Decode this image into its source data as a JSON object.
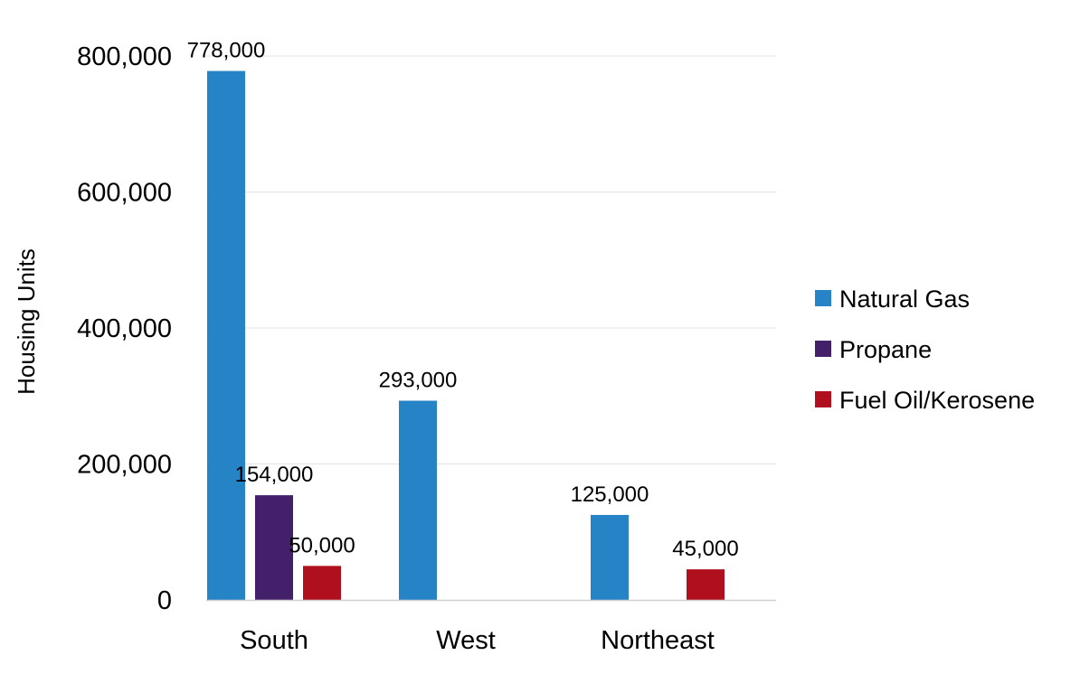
{
  "chart_data": {
    "type": "bar",
    "title": "",
    "xlabel": "",
    "ylabel": "Housing Units",
    "ylim": [
      0,
      800000
    ],
    "yticks": [
      0,
      200000,
      400000,
      600000,
      800000
    ],
    "ytick_labels": [
      "0",
      "200,000",
      "400,000",
      "600,000",
      "800,000"
    ],
    "categories": [
      "South",
      "West",
      "Northeast"
    ],
    "grid": true,
    "legend_position": "right",
    "series": [
      {
        "name": "Natural Gas",
        "color": "#2683C6",
        "values": [
          778000,
          293000,
          125000
        ],
        "labels": [
          "778,000",
          "293,000",
          "125,000"
        ]
      },
      {
        "name": "Propane",
        "color": "#45206A",
        "values": [
          154000,
          0,
          0
        ],
        "labels": [
          "154,000",
          "",
          ""
        ]
      },
      {
        "name": "Fuel Oil/Kerosene",
        "color": "#B0101E",
        "values": [
          50000,
          0,
          45000
        ],
        "labels": [
          "50,000",
          "",
          "45,000"
        ]
      }
    ]
  }
}
